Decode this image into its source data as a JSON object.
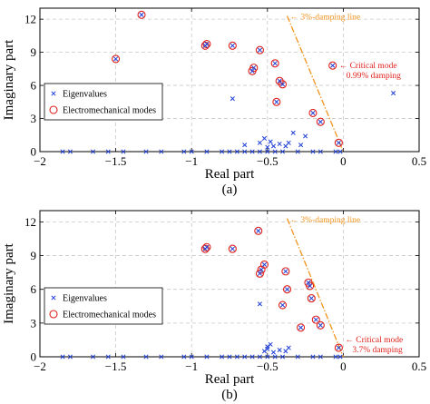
{
  "colors": {
    "eigen": "#1f3fd6",
    "mode": "#e0201b",
    "damping_line": "#f0941d",
    "grid": "#c8c8c8"
  },
  "chart_data": [
    {
      "type": "scatter",
      "caption": "(a)",
      "xlabel": "Real part",
      "ylabel": "Imaginary part",
      "xlim": [
        -2,
        0.5
      ],
      "ylim": [
        0,
        13
      ],
      "xticks": [
        "−2",
        "−1.5",
        "−1",
        "−0.5",
        "0",
        "0.5"
      ],
      "yticks": [
        "0",
        "3",
        "6",
        "9",
        "12"
      ],
      "grid": true,
      "legend_position": "left",
      "legend": [
        {
          "marker": "x",
          "label": "Eigenvalues"
        },
        {
          "marker": "circle",
          "label": "Electromechanical modes"
        }
      ],
      "damping_line": {
        "label": "← 3%-damping line",
        "from": [
          -0.37,
          12.3
        ],
        "to": [
          0,
          0
        ]
      },
      "critical_mode": {
        "x": -0.07,
        "y": 7.8,
        "label_1": "← Critical mode",
        "label_2": "0.99% damping"
      },
      "series": [
        {
          "marker": "x",
          "points": [
            [
              -1.85,
              0
            ],
            [
              -1.8,
              0
            ],
            [
              -1.65,
              0
            ],
            [
              -1.55,
              0
            ],
            [
              -1.45,
              0
            ],
            [
              -1.3,
              0
            ],
            [
              -1.2,
              0
            ],
            [
              -1.05,
              0
            ],
            [
              -1.0,
              0
            ],
            [
              -0.9,
              0
            ],
            [
              -0.8,
              0
            ],
            [
              -0.75,
              0
            ],
            [
              -0.7,
              0
            ],
            [
              -0.65,
              0
            ],
            [
              -0.6,
              0
            ],
            [
              -0.55,
              0
            ],
            [
              -0.5,
              0
            ],
            [
              -0.45,
              0
            ],
            [
              -0.4,
              0
            ],
            [
              -0.3,
              0
            ],
            [
              -0.2,
              0
            ],
            [
              -0.15,
              0
            ],
            [
              -0.05,
              0
            ],
            [
              -0.02,
              0
            ],
            [
              -1.5,
              8.4
            ],
            [
              -1.33,
              12.4
            ],
            [
              -0.91,
              9.6
            ],
            [
              -0.9,
              9.75
            ],
            [
              -0.73,
              9.6
            ],
            [
              -0.6,
              7.3
            ],
            [
              -0.59,
              7.6
            ],
            [
              -0.55,
              9.2
            ],
            [
              -0.45,
              8.0
            ],
            [
              -0.42,
              6.4
            ],
            [
              -0.4,
              6.1
            ],
            [
              -0.44,
              4.5
            ],
            [
              -0.2,
              3.5
            ],
            [
              -0.15,
              2.7
            ],
            [
              -0.07,
              7.8
            ],
            [
              -0.03,
              0.8
            ],
            [
              -0.73,
              4.8
            ],
            [
              0.33,
              5.3
            ],
            [
              -0.65,
              0.6
            ],
            [
              -0.55,
              0.8
            ],
            [
              -0.52,
              1.2
            ],
            [
              -0.5,
              0.4
            ],
            [
              -0.48,
              0.9
            ],
            [
              -0.46,
              0.5
            ],
            [
              -0.42,
              0.7
            ],
            [
              -0.38,
              0.5
            ],
            [
              -0.36,
              0.8
            ],
            [
              -0.28,
              0.6
            ],
            [
              -0.25,
              1.4
            ],
            [
              -0.33,
              1.7
            ]
          ]
        },
        {
          "marker": "circle",
          "points": [
            [
              -1.5,
              8.4
            ],
            [
              -1.33,
              12.4
            ],
            [
              -0.91,
              9.6
            ],
            [
              -0.9,
              9.75
            ],
            [
              -0.73,
              9.6
            ],
            [
              -0.6,
              7.3
            ],
            [
              -0.59,
              7.6
            ],
            [
              -0.55,
              9.2
            ],
            [
              -0.45,
              8.0
            ],
            [
              -0.42,
              6.4
            ],
            [
              -0.4,
              6.1
            ],
            [
              -0.44,
              4.5
            ],
            [
              -0.2,
              3.5
            ],
            [
              -0.15,
              2.7
            ],
            [
              -0.07,
              7.8
            ],
            [
              -0.03,
              0.8
            ]
          ]
        }
      ]
    },
    {
      "type": "scatter",
      "caption": "(b)",
      "xlabel": "Real part",
      "ylabel": "Imaginary part",
      "xlim": [
        -2,
        0.5
      ],
      "ylim": [
        0,
        13
      ],
      "xticks": [
        "−2",
        "−1.5",
        "−1",
        "−0.5",
        "0",
        "0.5"
      ],
      "yticks": [
        "0",
        "3",
        "6",
        "9",
        "12"
      ],
      "grid": true,
      "legend_position": "left",
      "legend": [
        {
          "marker": "x",
          "label": "Eigenvalues"
        },
        {
          "marker": "circle",
          "label": "Electromechanical modes"
        }
      ],
      "damping_line": {
        "label": "← 3%-damping line",
        "from": [
          -0.37,
          12.3
        ],
        "to": [
          0,
          0
        ]
      },
      "critical_mode": {
        "x": -0.03,
        "y": 0.8,
        "label_1": "← Critical mode",
        "label_2": "3.7% damping"
      },
      "series": [
        {
          "marker": "x",
          "points": [
            [
              -1.85,
              0
            ],
            [
              -1.8,
              0
            ],
            [
              -1.65,
              0
            ],
            [
              -1.55,
              0
            ],
            [
              -1.45,
              0
            ],
            [
              -1.3,
              0
            ],
            [
              -1.2,
              0
            ],
            [
              -1.05,
              0
            ],
            [
              -1.0,
              0
            ],
            [
              -0.9,
              0
            ],
            [
              -0.8,
              0
            ],
            [
              -0.75,
              0
            ],
            [
              -0.7,
              0
            ],
            [
              -0.65,
              0
            ],
            [
              -0.6,
              0
            ],
            [
              -0.55,
              0
            ],
            [
              -0.5,
              0
            ],
            [
              -0.45,
              0
            ],
            [
              -0.4,
              0
            ],
            [
              -0.3,
              0
            ],
            [
              -0.2,
              0
            ],
            [
              -0.15,
              0
            ],
            [
              -0.05,
              0
            ],
            [
              -0.02,
              0
            ],
            [
              -0.91,
              9.6
            ],
            [
              -0.9,
              9.75
            ],
            [
              -0.73,
              9.6
            ],
            [
              -0.56,
              11.2
            ],
            [
              -0.55,
              7.4
            ],
            [
              -0.54,
              7.75
            ],
            [
              -0.52,
              8.2
            ],
            [
              -0.38,
              7.6
            ],
            [
              -0.37,
              6.0
            ],
            [
              -0.23,
              6.6
            ],
            [
              -0.22,
              6.3
            ],
            [
              -0.4,
              4.6
            ],
            [
              -0.21,
              5.2
            ],
            [
              -0.18,
              3.3
            ],
            [
              -0.15,
              2.8
            ],
            [
              -0.28,
              2.6
            ],
            [
              -0.03,
              0.8
            ],
            [
              -0.55,
              4.7
            ],
            [
              -0.52,
              0.5
            ],
            [
              -0.5,
              0.7
            ],
            [
              -0.48,
              1.1
            ],
            [
              -0.46,
              0.4
            ],
            [
              -0.42,
              0.6
            ],
            [
              -0.38,
              0.5
            ],
            [
              -0.36,
              0.8
            ],
            [
              -0.5,
              0.9
            ]
          ]
        },
        {
          "marker": "circle",
          "points": [
            [
              -0.91,
              9.6
            ],
            [
              -0.9,
              9.75
            ],
            [
              -0.73,
              9.6
            ],
            [
              -0.56,
              11.2
            ],
            [
              -0.55,
              7.4
            ],
            [
              -0.54,
              7.75
            ],
            [
              -0.52,
              8.2
            ],
            [
              -0.38,
              7.6
            ],
            [
              -0.37,
              6.0
            ],
            [
              -0.23,
              6.6
            ],
            [
              -0.22,
              6.3
            ],
            [
              -0.4,
              4.6
            ],
            [
              -0.21,
              5.2
            ],
            [
              -0.18,
              3.3
            ],
            [
              -0.15,
              2.8
            ],
            [
              -0.28,
              2.6
            ],
            [
              -0.03,
              0.8
            ]
          ]
        }
      ]
    }
  ]
}
